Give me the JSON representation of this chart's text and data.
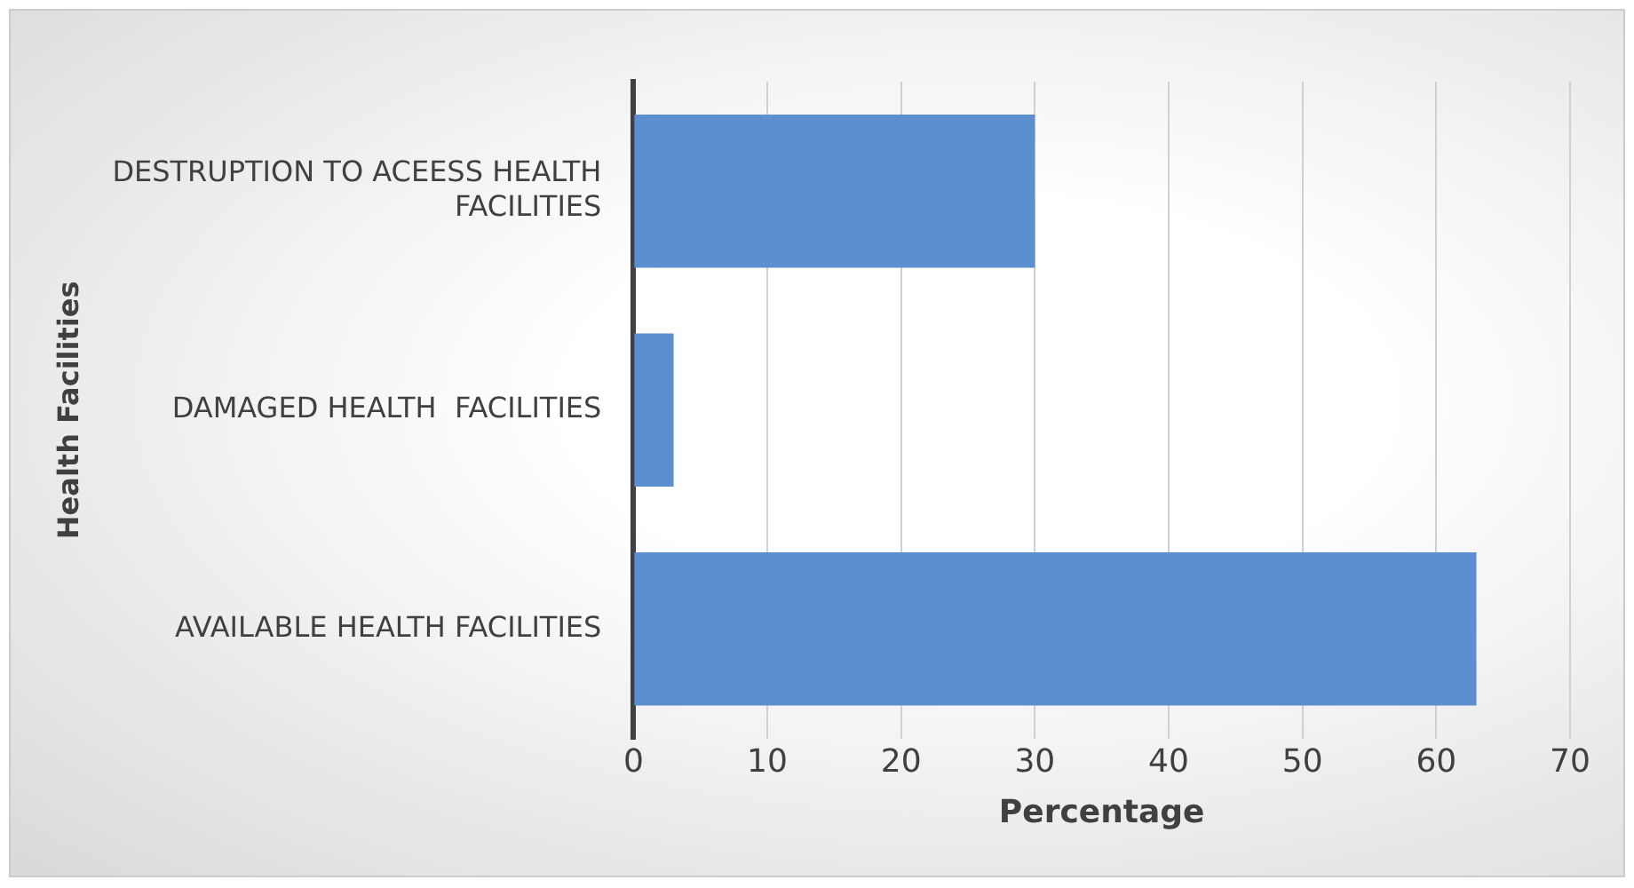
{
  "chart_data": {
    "type": "bar",
    "orientation": "horizontal",
    "categories": [
      "DESTRUPTION TO ACEESS HEALTH FACILITIES",
      "DAMAGED HEALTH  FACILITIES",
      "AVAILABLE HEALTH FACILITIES"
    ],
    "values": [
      30,
      3,
      63
    ],
    "color": "#5b8fd0",
    "xlabel": "Percentage",
    "ylabel": "Health Facilities",
    "xlim": [
      0,
      70
    ],
    "xticks": [
      0,
      10,
      20,
      30,
      40,
      50,
      60,
      70
    ],
    "grid": "x",
    "legend": false
  }
}
